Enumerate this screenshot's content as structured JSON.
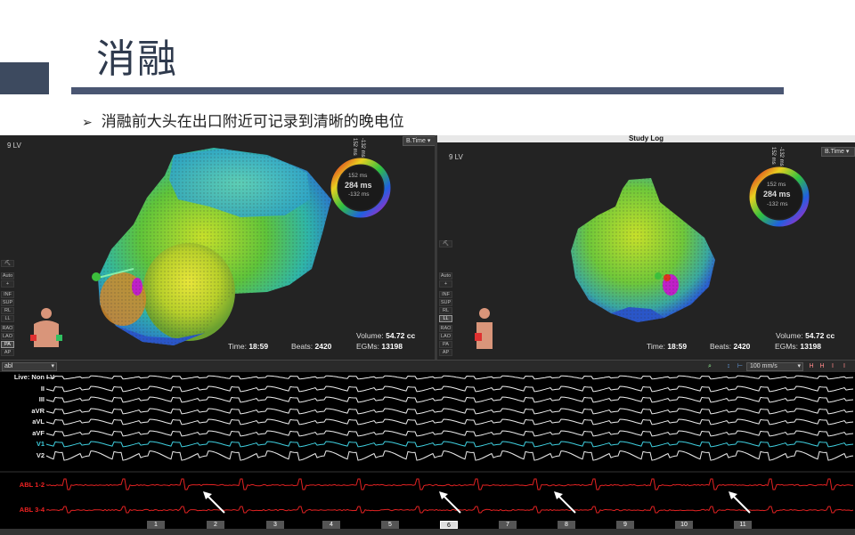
{
  "slide": {
    "title": "消融",
    "bullet_marker": "➢",
    "bullet": "消融前大头在出口附近可记录到清晰的晚电位"
  },
  "left_panel": {
    "label": "9 LV",
    "mode": "B.Time",
    "ring": {
      "top_a": "152 ms",
      "top_b": "-132 ms",
      "upper": "152 ms",
      "center": "284 ms",
      "lower": "-132 ms"
    },
    "side_buttons": [
      "Auto",
      "+",
      "INF",
      "SUP",
      "RL",
      "LL",
      "RAO",
      "LAO",
      "PA",
      "AP"
    ],
    "active_button": "PA",
    "stats": {
      "volume_label": "Volume:",
      "volume": "54.72 cc",
      "time_label": "Time:",
      "time": "18:59",
      "beats_label": "Beats:",
      "beats": "2420",
      "egms_label": "EGMs:",
      "egms": "13198"
    }
  },
  "right_panel": {
    "header": "Study Log",
    "label": "9 LV",
    "mode": "B.Time",
    "ring": {
      "top_a": "152 ms",
      "top_b": "-132 ms",
      "upper": "152 ms",
      "center": "284 ms",
      "lower": "-132 ms"
    },
    "side_buttons": [
      "Auto",
      "+",
      "INF",
      "SUP",
      "RL",
      "LL",
      "RAO",
      "LAO",
      "PA",
      "AP"
    ],
    "active_button": "LL",
    "stats": {
      "volume_label": "Volume:",
      "volume": "54.72 cc",
      "time_label": "Time:",
      "time": "18:59",
      "beats_label": "Beats:",
      "beats": "2420",
      "egms_label": "EGMs:",
      "egms": "13198"
    }
  },
  "egm": {
    "catheter": "abl",
    "speed": "100 mm/s",
    "channels": [
      {
        "label": "Live: Non",
        "color": "#eeeeee"
      },
      {
        "label": "II",
        "color": "#eeeeee"
      },
      {
        "label": "III",
        "color": "#eeeeee"
      },
      {
        "label": "aVR",
        "color": "#eeeeee"
      },
      {
        "label": "aVL",
        "color": "#eeeeee"
      },
      {
        "label": "aVF",
        "color": "#eeeeee"
      },
      {
        "label": "V1",
        "color": "#3fd0e0"
      },
      {
        "label": "V2",
        "color": "#eeeeee"
      },
      {
        "label": "ABL 1-2",
        "color": "#e22222"
      },
      {
        "label": "ABL 3-4",
        "color": "#e22222"
      }
    ],
    "lead_I_label": "I V",
    "beats": [
      "1",
      "2",
      "3",
      "4",
      "5",
      "6",
      "7",
      "8",
      "9",
      "10",
      "11"
    ],
    "selected_beat": "6"
  }
}
